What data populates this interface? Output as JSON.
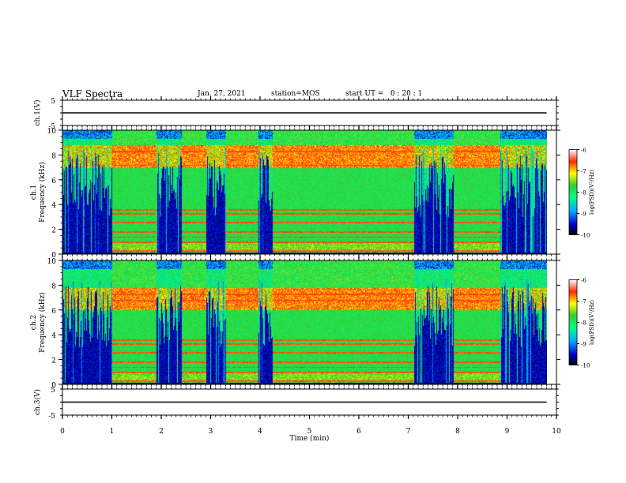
{
  "header": {
    "title": "VLF Spectra",
    "date": "Jan. 27, 2021",
    "station": "station=MOS",
    "start_ut": "start UT =   0 : 20 : 1"
  },
  "chart_data": [
    {
      "type": "line",
      "name": "ch.1 waveform",
      "ylabel": "ch.1(V)",
      "ylim": [
        -5,
        5
      ],
      "ytick_labels": [
        "5",
        "-5"
      ],
      "x": [
        0,
        9.8
      ],
      "values": [
        0,
        0
      ],
      "xlim": [
        0,
        10
      ]
    },
    {
      "type": "heatmap",
      "ylabel": "ch.1\nFrequency (kHz)",
      "ylim": [
        0,
        10
      ],
      "ytick_labels": [
        "0",
        "2",
        "4",
        "6",
        "8",
        "10"
      ],
      "xlim": [
        0,
        10
      ],
      "data_extent_min": [
        0,
        9.8
      ],
      "quiet_intervals_min": [
        [
          0.0,
          1.0
        ],
        [
          1.9,
          2.4
        ],
        [
          2.9,
          3.3
        ],
        [
          3.95,
          4.25
        ],
        [
          7.1,
          7.9
        ],
        [
          8.85,
          9.8
        ]
      ],
      "strong_bands_kHz": [
        [
          7.0,
          8.8
        ]
      ],
      "horizontal_lines_kHz": [
        0.3,
        1.0,
        1.4,
        1.8,
        2.6,
        3.3,
        3.6,
        7.2,
        8.3
      ],
      "colorbar": {
        "label": "log(PSD)(V²/Hz)",
        "range": [
          -10,
          -6
        ],
        "tick_labels": [
          "-6",
          "-7",
          "-8",
          "-9",
          "-10"
        ]
      }
    },
    {
      "type": "heatmap",
      "ylabel": "ch.2\nFrequency (kHz)",
      "ylim": [
        0,
        10
      ],
      "ytick_labels": [
        "0",
        "2",
        "4",
        "6",
        "8",
        "10"
      ],
      "xlim": [
        0,
        10
      ],
      "data_extent_min": [
        0,
        9.8
      ],
      "quiet_intervals_min": [
        [
          0.0,
          1.0
        ],
        [
          1.9,
          2.4
        ],
        [
          2.9,
          3.3
        ],
        [
          3.95,
          4.25
        ],
        [
          7.1,
          7.9
        ],
        [
          8.85,
          9.8
        ]
      ],
      "strong_bands_kHz": [
        [
          6.0,
          7.8
        ]
      ],
      "horizontal_lines_kHz": [
        0.3,
        1.0,
        1.4,
        1.8,
        2.6,
        3.3,
        3.6,
        6.8,
        7.3
      ],
      "colorbar": {
        "label": "log(PSD)(V²/Hz)",
        "range": [
          -10,
          -6
        ],
        "tick_labels": [
          "-6",
          "-7",
          "-8",
          "-9",
          "-10"
        ]
      }
    },
    {
      "type": "line",
      "name": "ch.3 waveform",
      "ylabel": "ch.3(V)",
      "ylim": [
        -5,
        5
      ],
      "ytick_labels": [
        "5",
        "-5"
      ],
      "x": [
        0,
        9.8
      ],
      "values": [
        0,
        0
      ],
      "xlim": [
        0,
        10
      ],
      "xlabel": "Time (min)",
      "xtick_labels": [
        "0",
        "1",
        "2",
        "3",
        "4",
        "5",
        "6",
        "7",
        "8",
        "9",
        "10"
      ]
    }
  ]
}
